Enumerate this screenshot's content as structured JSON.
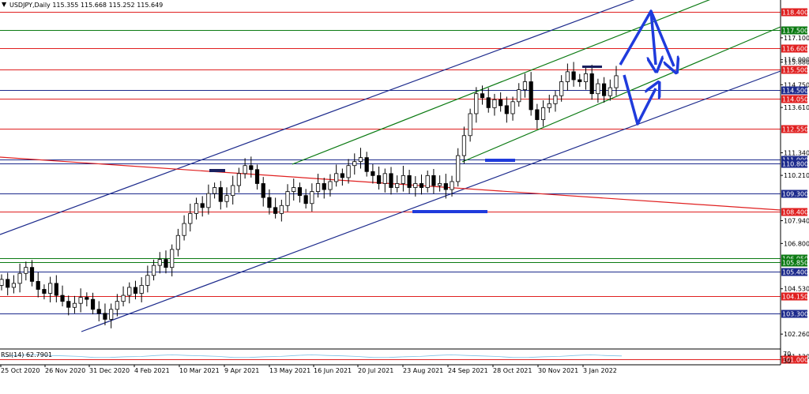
{
  "header": {
    "title": "USDJPY,Daily  115.355 115.668 115.252 115.649"
  },
  "colors": {
    "background": "#ffffff",
    "red_level": "#e02020",
    "green_level": "#0b7a12",
    "navy_level": "#1c2a8c",
    "up_candle": "#ffffff",
    "down_candle": "#000000",
    "arrow": "#1f3bdc",
    "rsi_line": "#7ec1e6"
  },
  "chart_data": {
    "type": "candlestick",
    "symbol": "USDJPY",
    "timeframe": "Daily",
    "ylim": [
      101.0,
      118.7
    ],
    "x_labels": [
      "25 Oct 2020",
      "26 Nov 2020",
      "31 Dec 2020",
      "4 Feb 2021",
      "10 Mar 2021",
      "9 Apr 2021",
      "13 May 2021",
      "16 Jun 2021",
      "20 Jul 2021",
      "23 Aug 2021",
      "24 Sep 2021",
      "28 Oct 2021",
      "30 Nov 2021",
      "3 Jan 2022"
    ],
    "y_ticks": [
      "117.100",
      "116.000",
      "115.880",
      "114.750",
      "113.610",
      "111.340",
      "110.210",
      "107.940",
      "106.800",
      "104.530",
      "102.260",
      "101.130"
    ],
    "levels": [
      {
        "label": "118.400",
        "value": 118.4,
        "color": "red"
      },
      {
        "label": "117.500",
        "value": 117.5,
        "color": "green"
      },
      {
        "label": "116.600",
        "value": 116.6,
        "color": "red"
      },
      {
        "label": "115.500",
        "value": 115.5,
        "color": "red"
      },
      {
        "label": "114.500",
        "value": 114.5,
        "color": "navy"
      },
      {
        "label": "114.050",
        "value": 114.05,
        "color": "red"
      },
      {
        "label": "112.550",
        "value": 112.55,
        "color": "red"
      },
      {
        "label": "111.000",
        "value": 111.0,
        "color": "navy"
      },
      {
        "label": "110.800",
        "value": 110.8,
        "color": "navy"
      },
      {
        "label": "109.300",
        "value": 109.3,
        "color": "navy"
      },
      {
        "label": "108.400",
        "value": 108.4,
        "color": "red"
      },
      {
        "label": "106.050",
        "value": 106.05,
        "color": "green"
      },
      {
        "label": "105.850",
        "value": 105.85,
        "color": "green"
      },
      {
        "label": "105.400",
        "value": 105.4,
        "color": "navy"
      },
      {
        "label": "104.150",
        "value": 104.15,
        "color": "red"
      },
      {
        "label": "103.300",
        "value": 103.3,
        "color": "navy"
      },
      {
        "label": "101.000",
        "value": 101.0,
        "color": "red"
      }
    ],
    "closes": [
      105.0,
      104.6,
      104.8,
      105.3,
      105.6,
      104.9,
      104.5,
      104.3,
      104.8,
      104.2,
      103.9,
      103.6,
      103.8,
      104.1,
      104.0,
      103.5,
      103.3,
      103.0,
      103.5,
      103.9,
      104.2,
      104.6,
      104.3,
      104.7,
      105.2,
      105.7,
      106.0,
      105.6,
      106.5,
      107.2,
      107.8,
      108.3,
      108.8,
      108.6,
      109.3,
      109.6,
      108.9,
      109.2,
      109.7,
      110.3,
      110.7,
      110.5,
      109.8,
      109.1,
      108.6,
      108.3,
      108.7,
      109.4,
      109.6,
      109.2,
      108.8,
      109.4,
      109.8,
      109.5,
      109.9,
      110.3,
      110.1,
      110.7,
      110.9,
      111.1,
      110.4,
      110.2,
      109.8,
      110.3,
      109.6,
      109.8,
      110.2,
      109.6,
      109.8,
      109.6,
      110.2,
      109.7,
      109.8,
      109.5,
      109.9,
      111.2,
      112.2,
      113.3,
      114.3,
      114.1,
      113.6,
      114.0,
      113.7,
      113.3,
      113.9,
      114.5,
      114.9,
      113.5,
      113.0,
      113.6,
      113.8,
      114.2,
      114.9,
      115.4,
      115.0,
      114.9,
      115.3,
      114.3,
      114.8,
      114.2,
      114.6,
      115.2
    ],
    "rsi": {
      "label": "RSI(14) 62.7901",
      "value": 62.7901,
      "levels": [
        "70",
        "30"
      ]
    }
  }
}
